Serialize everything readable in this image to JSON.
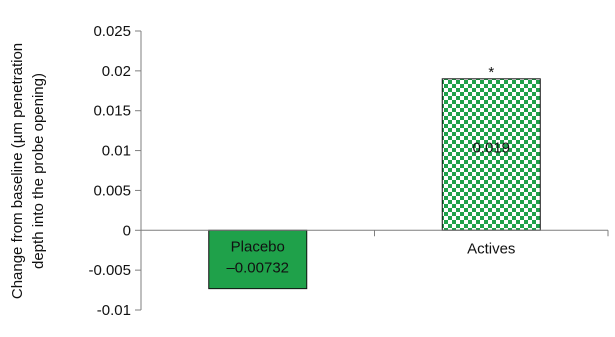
{
  "chart_data": {
    "type": "bar",
    "title": "",
    "xlabel": "",
    "ylabel_lines": [
      "Change from baseline (µm penetration",
      "depth into the probe opening)"
    ],
    "ylim": [
      -0.01,
      0.025
    ],
    "yticks": [
      {
        "value": 0.025,
        "label": "0.025"
      },
      {
        "value": 0.02,
        "label": "0.02"
      },
      {
        "value": 0.015,
        "label": "0.015"
      },
      {
        "value": 0.01,
        "label": "0.01"
      },
      {
        "value": 0.005,
        "label": "0.005"
      },
      {
        "value": 0,
        "label": "0"
      },
      {
        "value": -0.005,
        "label": "-0.005"
      },
      {
        "value": -0.01,
        "label": "-0.01"
      }
    ],
    "categories": [
      "Placebo",
      "Actives"
    ],
    "values": [
      -0.00732,
      0.019
    ],
    "value_labels": [
      "–0.00732",
      "0.019"
    ],
    "significance_markers": [
      "",
      "*"
    ],
    "grid": false,
    "legend": "none",
    "bar_styles": [
      {
        "fill": "#1fa14a",
        "pattern": "solid"
      },
      {
        "fill": "#1fa14a",
        "pattern": "checkerboard",
        "secondary": "#ffffff"
      }
    ],
    "axis_color": "#7f7f7f",
    "text_color": "#111111"
  }
}
